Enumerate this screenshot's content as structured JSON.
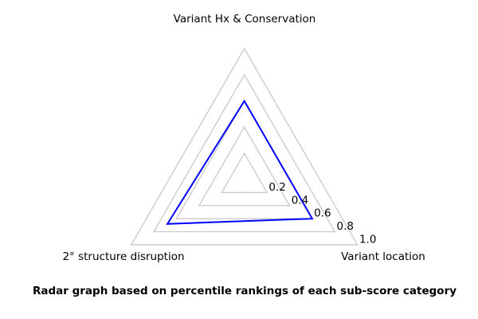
{
  "chart_data": {
    "type": "radar",
    "categories": [
      "Variant Hx & Conservation",
      "2° structure disruption",
      "Variant location"
    ],
    "series": [
      {
        "name": "percentile ranking",
        "values": [
          0.6,
          0.68,
          0.6
        ]
      }
    ],
    "ticks": [
      0.2,
      0.4,
      0.6,
      0.8,
      1.0
    ],
    "tick_labels": [
      "0.2",
      "0.4",
      "0.6",
      "0.8",
      "1.0"
    ],
    "rlim": [
      0,
      1.0
    ],
    "grid": true,
    "legend": "none",
    "line_color": "#0000ff",
    "grid_color": "#cccccc",
    "caption": "Radar graph based on percentile rankings of each sub-score category"
  }
}
